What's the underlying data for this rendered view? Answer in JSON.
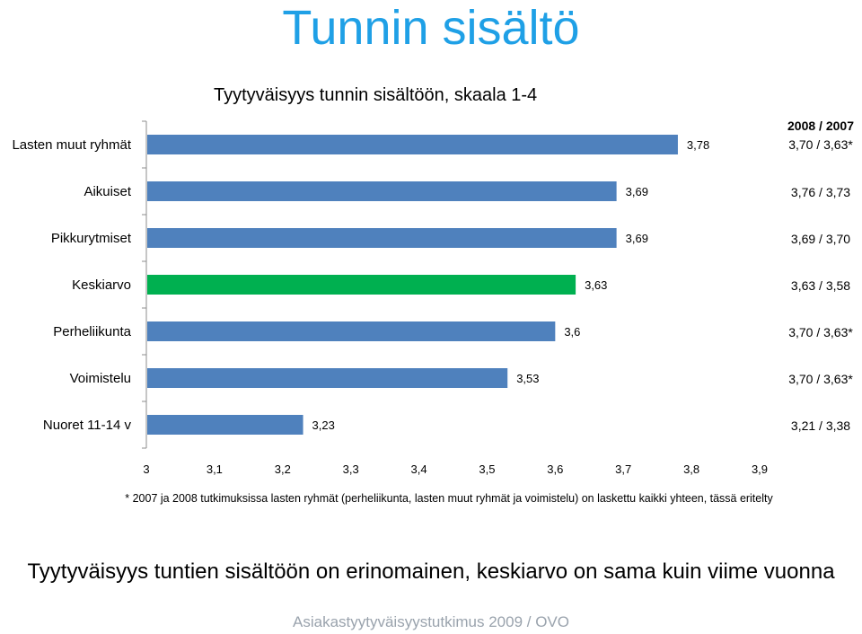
{
  "page": {
    "title": "Tunnin sisältö",
    "footnote": "* 2007 ja 2008 tutkimuksissa lasten ryhmät  (perheliikunta, lasten muut ryhmät ja voimistelu) on laskettu kaikki yhteen, tässä eritelty",
    "conclusion": "Tyytyväisyys tuntien sisältöön on erinomainen, keskiarvo on sama kuin viime vuonna",
    "source": "Asiakastyytyväisyystutkimus 2009 / OVO"
  },
  "colors": {
    "title": "#1fa0e6",
    "bar": "#4f81bd",
    "highlight": "#00b050",
    "source": "#9aa3ad"
  },
  "chart_data": {
    "type": "bar",
    "orientation": "horizontal",
    "title": "Tyytyväisyys tunnin sisältöön, skaala 1-4",
    "categories": [
      "Lasten muut ryhmät",
      "Aikuiset",
      "Pikkurytmiset",
      "Keskiarvo",
      "Perheliikunta",
      "Voimistelu",
      "Nuoret 11-14 v"
    ],
    "values": [
      3.78,
      3.69,
      3.69,
      3.63,
      3.6,
      3.53,
      3.23
    ],
    "value_labels": [
      "3,78",
      "3,69",
      "3,69",
      "3,63",
      "3,6",
      "3,53",
      "3,23"
    ],
    "highlight_category": "Keskiarvo",
    "xlim": [
      3,
      3.9
    ],
    "xticks": [
      3,
      3.1,
      3.2,
      3.3,
      3.4,
      3.5,
      3.6,
      3.7,
      3.8,
      3.9
    ],
    "xtick_labels": [
      "3",
      "3,1",
      "3,2",
      "3,3",
      "3,4",
      "3,5",
      "3,6",
      "3,7",
      "3,8",
      "3,9"
    ],
    "grid": false,
    "comparison": {
      "header": "2008 / 2007",
      "values": [
        "3,70 / 3,63*",
        "3,76 / 3,73",
        "3,69 / 3,70",
        "3,63 / 3,58",
        "3,70 / 3,63*",
        "3,70 / 3,63*",
        "3,21 / 3,38"
      ]
    }
  }
}
